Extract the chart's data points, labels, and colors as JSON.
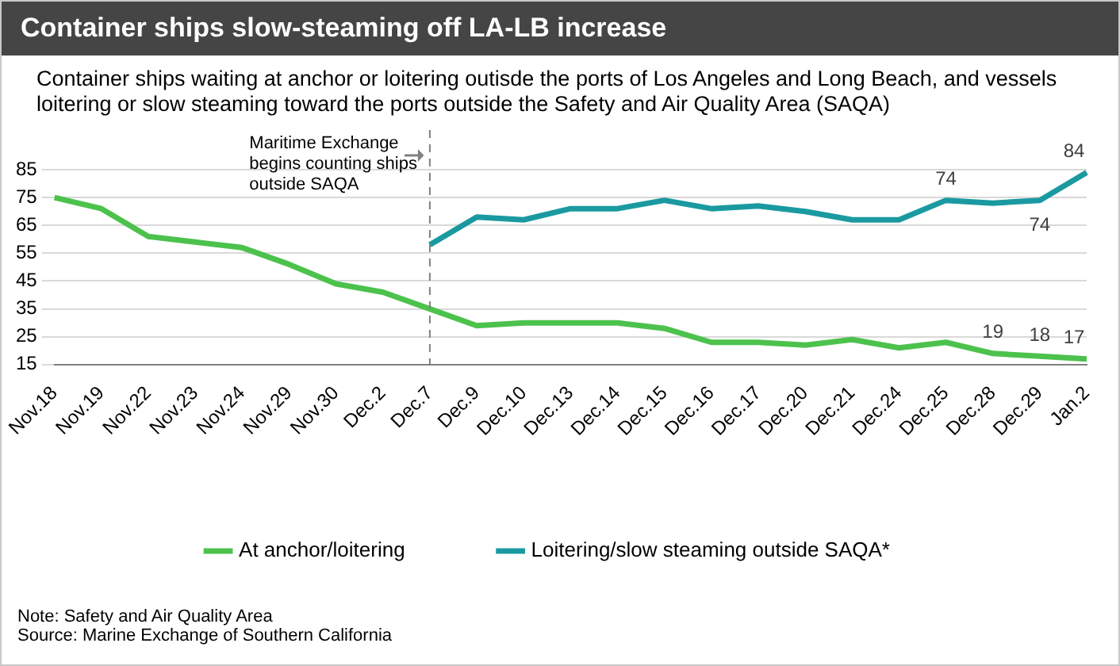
{
  "chart_data": {
    "type": "line",
    "title": "Container ships slow-steaming off LA-LB increase",
    "subtitle": "Container ships waiting at anchor or loitering outisde the ports of Los Angeles and Long Beach, and vessels loitering or slow steaming toward the ports outside the Safety and Air Quality Area (SAQA)",
    "categories": [
      "Nov.18",
      "Nov.19",
      "Nov.22",
      "Nov.23",
      "Nov.24",
      "Nov.29",
      "Nov.30",
      "Dec.2",
      "Dec.7",
      "Dec.9",
      "Dec.10",
      "Dec.13",
      "Dec.14",
      "Dec.15",
      "Dec.16",
      "Dec.17",
      "Dec.20",
      "Dec.21",
      "Dec.24",
      "Dec.25",
      "Dec.28",
      "Dec.29",
      "Jan.2"
    ],
    "series": [
      {
        "name": "At anchor/loitering",
        "color": "#4cc24c",
        "values": [
          75,
          71,
          61,
          59,
          57,
          51,
          44,
          41,
          35,
          29,
          30,
          30,
          30,
          28,
          23,
          23,
          22,
          24,
          21,
          23,
          19,
          18,
          17
        ],
        "value_labels": [
          null,
          null,
          null,
          null,
          null,
          null,
          null,
          null,
          null,
          null,
          null,
          null,
          null,
          null,
          null,
          null,
          null,
          null,
          null,
          null,
          "19",
          "18",
          "17"
        ]
      },
      {
        "name": "Loitering/slow steaming outside SAQA*",
        "color": "#1a9aa0",
        "values": [
          null,
          null,
          null,
          null,
          null,
          null,
          null,
          null,
          58,
          68,
          67,
          71,
          71,
          74,
          71,
          72,
          70,
          67,
          67,
          74,
          73,
          74,
          84
        ],
        "value_labels": [
          null,
          null,
          null,
          null,
          null,
          null,
          null,
          null,
          null,
          null,
          null,
          null,
          null,
          null,
          null,
          null,
          null,
          null,
          null,
          "74",
          null,
          "74",
          "84"
        ]
      }
    ],
    "ylim": [
      15,
      85
    ],
    "yticks": [
      15,
      25,
      35,
      45,
      55,
      65,
      75,
      85
    ],
    "grid": "y",
    "legend": "bottom",
    "line_style": "solid",
    "marker": "none",
    "ref_lines": [
      {
        "axis": "x",
        "value": "Dec.7",
        "label": "Maritime Exchange begins counting ships outside SAQA",
        "line_style": "dashed",
        "color": "#808080"
      }
    ],
    "annotations": [
      "Note: Safety and Air Quality Area",
      "Source: Marine Exchange of Southern California"
    ]
  }
}
